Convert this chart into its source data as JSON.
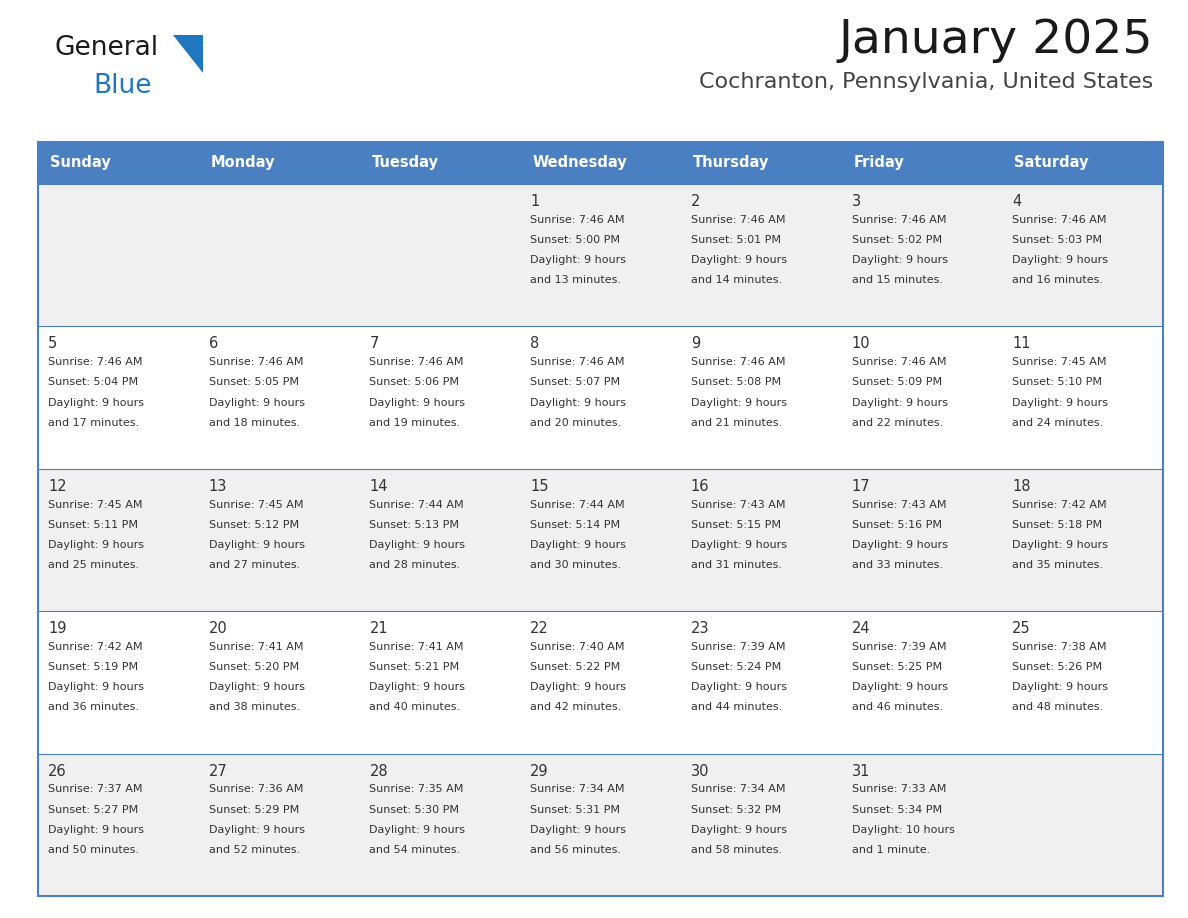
{
  "title": "January 2025",
  "subtitle": "Cochranton, Pennsylvania, United States",
  "header_bg": "#4a7fc1",
  "header_text_color": "#ffffff",
  "day_names": [
    "Sunday",
    "Monday",
    "Tuesday",
    "Wednesday",
    "Thursday",
    "Friday",
    "Saturday"
  ],
  "row_bg_odd": "#f0f0f0",
  "row_bg_even": "#ffffff",
  "cell_border_color": "#4a7fc1",
  "text_color": "#333333",
  "logo_black": "#1a1a1a",
  "logo_blue": "#2176c2",
  "days": [
    {
      "day": 1,
      "col": 3,
      "row": 0,
      "sunrise": "7:46 AM",
      "sunset": "5:00 PM",
      "daylight": "9 hours and 13 minutes."
    },
    {
      "day": 2,
      "col": 4,
      "row": 0,
      "sunrise": "7:46 AM",
      "sunset": "5:01 PM",
      "daylight": "9 hours and 14 minutes."
    },
    {
      "day": 3,
      "col": 5,
      "row": 0,
      "sunrise": "7:46 AM",
      "sunset": "5:02 PM",
      "daylight": "9 hours and 15 minutes."
    },
    {
      "day": 4,
      "col": 6,
      "row": 0,
      "sunrise": "7:46 AM",
      "sunset": "5:03 PM",
      "daylight": "9 hours and 16 minutes."
    },
    {
      "day": 5,
      "col": 0,
      "row": 1,
      "sunrise": "7:46 AM",
      "sunset": "5:04 PM",
      "daylight": "9 hours and 17 minutes."
    },
    {
      "day": 6,
      "col": 1,
      "row": 1,
      "sunrise": "7:46 AM",
      "sunset": "5:05 PM",
      "daylight": "9 hours and 18 minutes."
    },
    {
      "day": 7,
      "col": 2,
      "row": 1,
      "sunrise": "7:46 AM",
      "sunset": "5:06 PM",
      "daylight": "9 hours and 19 minutes."
    },
    {
      "day": 8,
      "col": 3,
      "row": 1,
      "sunrise": "7:46 AM",
      "sunset": "5:07 PM",
      "daylight": "9 hours and 20 minutes."
    },
    {
      "day": 9,
      "col": 4,
      "row": 1,
      "sunrise": "7:46 AM",
      "sunset": "5:08 PM",
      "daylight": "9 hours and 21 minutes."
    },
    {
      "day": 10,
      "col": 5,
      "row": 1,
      "sunrise": "7:46 AM",
      "sunset": "5:09 PM",
      "daylight": "9 hours and 22 minutes."
    },
    {
      "day": 11,
      "col": 6,
      "row": 1,
      "sunrise": "7:45 AM",
      "sunset": "5:10 PM",
      "daylight": "9 hours and 24 minutes."
    },
    {
      "day": 12,
      "col": 0,
      "row": 2,
      "sunrise": "7:45 AM",
      "sunset": "5:11 PM",
      "daylight": "9 hours and 25 minutes."
    },
    {
      "day": 13,
      "col": 1,
      "row": 2,
      "sunrise": "7:45 AM",
      "sunset": "5:12 PM",
      "daylight": "9 hours and 27 minutes."
    },
    {
      "day": 14,
      "col": 2,
      "row": 2,
      "sunrise": "7:44 AM",
      "sunset": "5:13 PM",
      "daylight": "9 hours and 28 minutes."
    },
    {
      "day": 15,
      "col": 3,
      "row": 2,
      "sunrise": "7:44 AM",
      "sunset": "5:14 PM",
      "daylight": "9 hours and 30 minutes."
    },
    {
      "day": 16,
      "col": 4,
      "row": 2,
      "sunrise": "7:43 AM",
      "sunset": "5:15 PM",
      "daylight": "9 hours and 31 minutes."
    },
    {
      "day": 17,
      "col": 5,
      "row": 2,
      "sunrise": "7:43 AM",
      "sunset": "5:16 PM",
      "daylight": "9 hours and 33 minutes."
    },
    {
      "day": 18,
      "col": 6,
      "row": 2,
      "sunrise": "7:42 AM",
      "sunset": "5:18 PM",
      "daylight": "9 hours and 35 minutes."
    },
    {
      "day": 19,
      "col": 0,
      "row": 3,
      "sunrise": "7:42 AM",
      "sunset": "5:19 PM",
      "daylight": "9 hours and 36 minutes."
    },
    {
      "day": 20,
      "col": 1,
      "row": 3,
      "sunrise": "7:41 AM",
      "sunset": "5:20 PM",
      "daylight": "9 hours and 38 minutes."
    },
    {
      "day": 21,
      "col": 2,
      "row": 3,
      "sunrise": "7:41 AM",
      "sunset": "5:21 PM",
      "daylight": "9 hours and 40 minutes."
    },
    {
      "day": 22,
      "col": 3,
      "row": 3,
      "sunrise": "7:40 AM",
      "sunset": "5:22 PM",
      "daylight": "9 hours and 42 minutes."
    },
    {
      "day": 23,
      "col": 4,
      "row": 3,
      "sunrise": "7:39 AM",
      "sunset": "5:24 PM",
      "daylight": "9 hours and 44 minutes."
    },
    {
      "day": 24,
      "col": 5,
      "row": 3,
      "sunrise": "7:39 AM",
      "sunset": "5:25 PM",
      "daylight": "9 hours and 46 minutes."
    },
    {
      "day": 25,
      "col": 6,
      "row": 3,
      "sunrise": "7:38 AM",
      "sunset": "5:26 PM",
      "daylight": "9 hours and 48 minutes."
    },
    {
      "day": 26,
      "col": 0,
      "row": 4,
      "sunrise": "7:37 AM",
      "sunset": "5:27 PM",
      "daylight": "9 hours and 50 minutes."
    },
    {
      "day": 27,
      "col": 1,
      "row": 4,
      "sunrise": "7:36 AM",
      "sunset": "5:29 PM",
      "daylight": "9 hours and 52 minutes."
    },
    {
      "day": 28,
      "col": 2,
      "row": 4,
      "sunrise": "7:35 AM",
      "sunset": "5:30 PM",
      "daylight": "9 hours and 54 minutes."
    },
    {
      "day": 29,
      "col": 3,
      "row": 4,
      "sunrise": "7:34 AM",
      "sunset": "5:31 PM",
      "daylight": "9 hours and 56 minutes."
    },
    {
      "day": 30,
      "col": 4,
      "row": 4,
      "sunrise": "7:34 AM",
      "sunset": "5:32 PM",
      "daylight": "9 hours and 58 minutes."
    },
    {
      "day": 31,
      "col": 5,
      "row": 4,
      "sunrise": "7:33 AM",
      "sunset": "5:34 PM",
      "daylight": "10 hours and 1 minute."
    }
  ],
  "num_rows": 5
}
